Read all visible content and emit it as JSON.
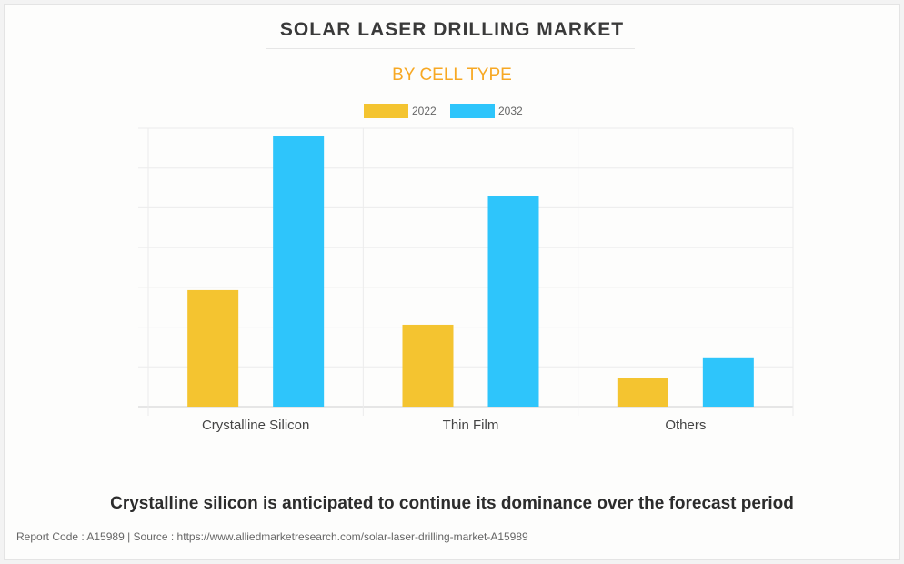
{
  "chart_data": {
    "type": "bar",
    "title": "SOLAR LASER DRILLING MARKET",
    "subtitle": "BY CELL TYPE",
    "categories": [
      "Crystalline Silicon",
      "Thin Film",
      "Others"
    ],
    "series": [
      {
        "name": "2022",
        "color": "#f4c430",
        "values": [
          2.93,
          2.06,
          0.71
        ]
      },
      {
        "name": "2032",
        "color": "#2ec5fb",
        "values": [
          6.8,
          5.3,
          1.24
        ]
      }
    ],
    "xlabel": "",
    "ylabel": "",
    "ylim": [
      0,
      7
    ],
    "grid": true,
    "legend": "top-center"
  },
  "caption": "Crystalline silicon is anticipated to continue its dominance over the forecast period",
  "footer": "Report Code : A15989  |  Source : https://www.alliedmarketresearch.com/solar-laser-drilling-market-A15989"
}
